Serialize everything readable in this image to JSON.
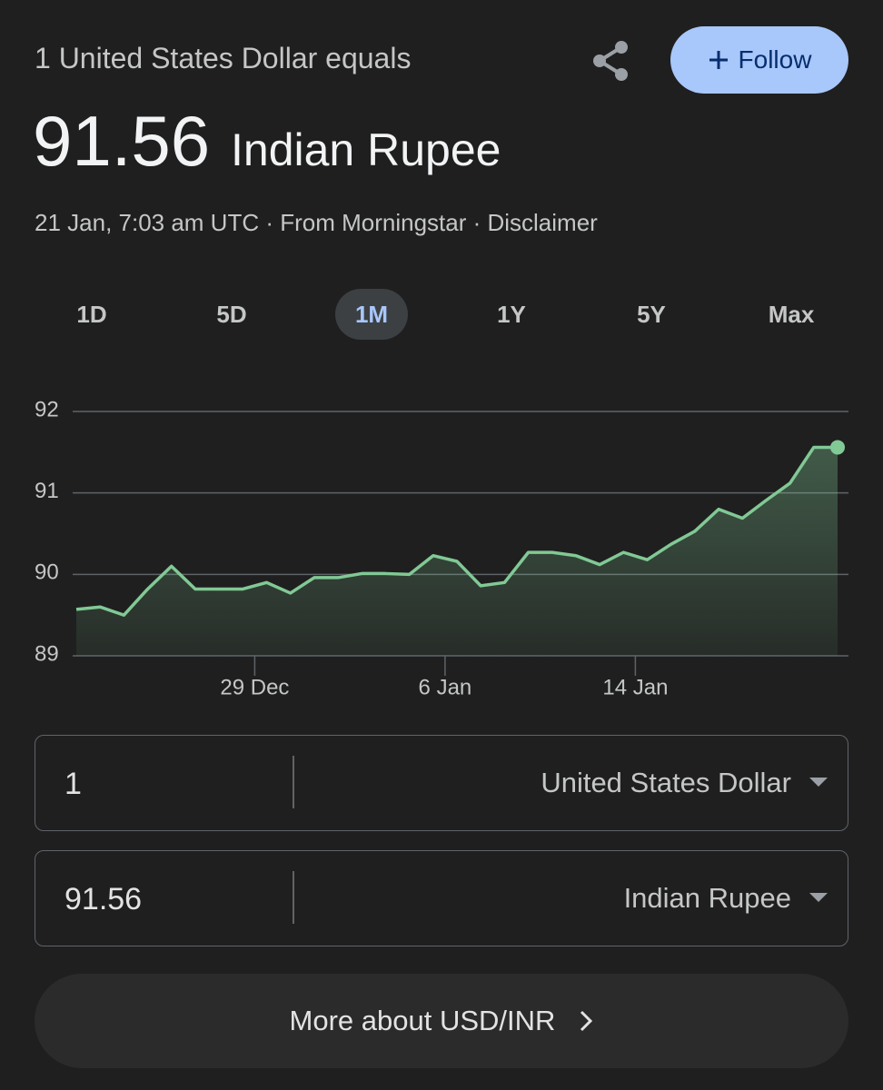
{
  "header": {
    "subtitle": "1 United States Dollar equals",
    "rate": "91.56",
    "currency": "Indian Rupee",
    "follow": "Follow",
    "meta": "21 Jan, 7:03 am UTC · From Morningstar · Disclaimer"
  },
  "ranges": {
    "options": [
      "1D",
      "5D",
      "1M",
      "1Y",
      "5Y",
      "Max"
    ],
    "selected": 2
  },
  "chart_data": {
    "type": "line",
    "color": "#81c995",
    "categories": [
      null,
      null,
      null,
      null,
      null,
      null,
      null,
      "29 Dec",
      null,
      null,
      null,
      null,
      null,
      null,
      null,
      "6 Jan",
      null,
      null,
      null,
      null,
      null,
      null,
      null,
      "14 Jan",
      null,
      null,
      null,
      null,
      null,
      null,
      null,
      null,
      null
    ],
    "values": [
      89.57,
      89.6,
      89.5,
      89.82,
      90.1,
      89.82,
      89.82,
      89.82,
      89.9,
      89.77,
      89.96,
      89.96,
      90.01,
      90.01,
      90.0,
      90.23,
      90.16,
      89.86,
      89.9,
      90.27,
      90.27,
      90.23,
      90.12,
      90.27,
      90.18,
      90.37,
      90.53,
      90.8,
      90.69,
      90.91,
      91.12,
      91.56,
      91.56
    ],
    "ylim": [
      89,
      92
    ],
    "yticks": [
      89,
      90,
      91,
      92
    ],
    "grid": true
  },
  "converter": {
    "rows": [
      {
        "amount": "1",
        "currency": "United States Dollar"
      },
      {
        "amount": "91.56",
        "currency": "Indian Rupee"
      }
    ]
  },
  "more": "More about USD/INR"
}
